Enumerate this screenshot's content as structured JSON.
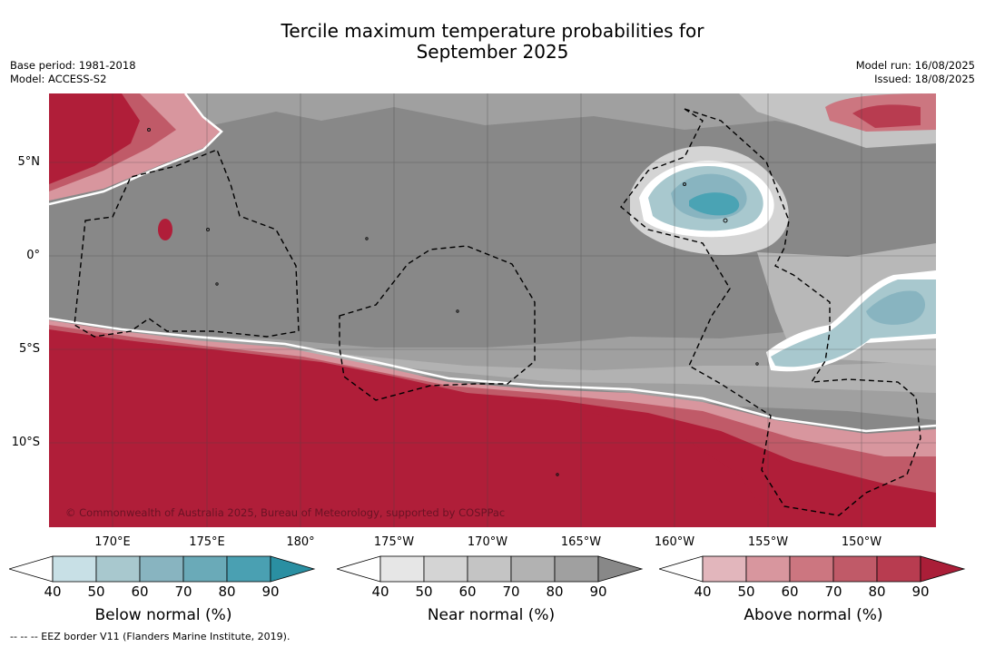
{
  "title": {
    "line1": "Tercile maximum temperature probabilities for",
    "line2": "September 2025"
  },
  "meta": {
    "base_period": "Base period: 1981-2018",
    "model": "Model: ACCESS-S2",
    "model_run": "Model run: 16/08/2025",
    "issued": "Issued: 18/08/2025"
  },
  "map": {
    "lat_labels": [
      "5°N",
      "0°",
      "5°S",
      "10°S"
    ],
    "lon_labels": [
      "170°E",
      "175°E",
      "180°",
      "175°W",
      "170°W",
      "165°W",
      "160°W",
      "155°W",
      "150°W"
    ],
    "copyright": "© Commonwealth of Australia 2025, Bureau of Meteorology, supported by COSPPac",
    "colors": {
      "ocean_near_normal": "#888888",
      "above_normal_strong": "#b01e39",
      "below_normal": "#4aa3b4"
    }
  },
  "colorbars": [
    {
      "label": "Below normal (%)",
      "ticks": [
        "40",
        "50",
        "60",
        "70",
        "80",
        "90"
      ],
      "colors": [
        "#ffffff",
        "#c8e0e6",
        "#a8c8ce",
        "#88b4c0",
        "#6aaab8",
        "#4aa0b2",
        "#2a8fa2"
      ]
    },
    {
      "label": "Near normal (%)",
      "ticks": [
        "40",
        "50",
        "60",
        "70",
        "80",
        "90"
      ],
      "colors": [
        "#ffffff",
        "#e6e6e6",
        "#d4d4d4",
        "#c4c4c4",
        "#b2b2b2",
        "#a0a0a0",
        "#888888"
      ]
    },
    {
      "label": "Above normal (%)",
      "ticks": [
        "40",
        "50",
        "60",
        "70",
        "80",
        "90"
      ],
      "colors": [
        "#ffffff",
        "#e2b6bc",
        "#d8969e",
        "#cc7680",
        "#c05a68",
        "#b83c50",
        "#aa1e38"
      ]
    }
  ],
  "footnote": "--  --  -- EEZ border V11 (Flanders Marine Institute, 2019)."
}
